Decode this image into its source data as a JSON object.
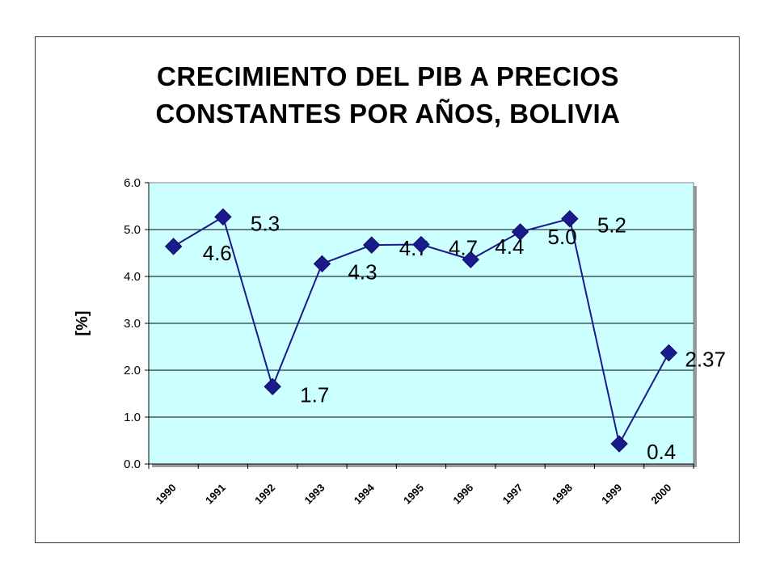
{
  "chart_data": {
    "type": "line",
    "title_lines": [
      "CRECIMIENTO DEL PIB A PRECIOS",
      "CONSTANTES POR AÑOS, BOLIVIA"
    ],
    "ylabel": "[%]",
    "xlabel": "",
    "categories": [
      "1990",
      "1991",
      "1992",
      "1993",
      "1994",
      "1995",
      "1996",
      "1997",
      "1998",
      "1999",
      "2000"
    ],
    "series": [
      {
        "values": [
          4.64,
          5.27,
          1.65,
          4.27,
          4.67,
          4.68,
          4.36,
          4.95,
          5.23,
          0.43,
          2.37
        ],
        "labels": [
          "4.6",
          "5.3",
          "1.7",
          "4.3",
          "4.7",
          "4.7",
          "4.4",
          "5.0",
          "5.2",
          "0.4",
          "2.37"
        ],
        "color": "#1a1a8c"
      }
    ],
    "ylim": [
      0,
      6
    ],
    "yticks": [
      "0.0",
      "1.0",
      "2.0",
      "3.0",
      "4.0",
      "5.0",
      "6.0"
    ],
    "grid": true,
    "plot_background": "#ccffff"
  }
}
